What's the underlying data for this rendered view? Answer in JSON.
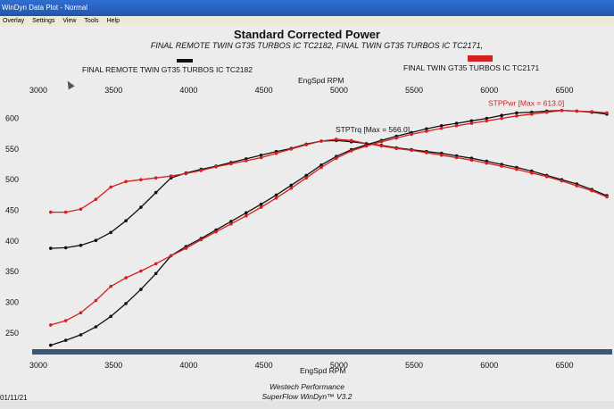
{
  "window": {
    "title": "WinDyn Data Plot - Normal"
  },
  "menu": [
    "Overlay",
    "Settings",
    "View",
    "Tools",
    "Help"
  ],
  "header": {
    "title": "Standard Corrected Power",
    "subtitle": "FINAL REMOTE TWIN GT35 TURBOS IC TC2182, FINAL TWIN GT35 TURBOS IC TC2171,",
    "legend_left": "FINAL REMOTE TWIN GT35 TURBOS IC TC2182",
    "legend_right": "FINAL TWIN GT35 TURBOS IC TC2171",
    "legend_left_color": "#111111",
    "legend_right_color": "#d42020"
  },
  "footer": {
    "date": "01/11/21",
    "brand": "Westech Performance",
    "software": "SuperFlow WinDyn™ V3.2"
  },
  "chart_data": {
    "type": "line",
    "xlabel": "EngSpd RPM",
    "xlim": [
      3000,
      6800
    ],
    "ylim": [
      225,
      630
    ],
    "x_ticks": [
      3000,
      3500,
      4000,
      4500,
      5000,
      5500,
      6000,
      6500
    ],
    "y_ticks": [
      250,
      300,
      350,
      400,
      450,
      500,
      550,
      600
    ],
    "annotations": {
      "torque": "STPTrq [Max = 566.0]",
      "power": "STPPwr [Max = 613.0]"
    },
    "series": [
      {
        "name": "STPTrq",
        "run": "FINAL REMOTE TWIN GT35 TURBOS IC TC2182",
        "color": "#111111",
        "x": [
          3100,
          3200,
          3300,
          3400,
          3500,
          3600,
          3700,
          3800,
          3900,
          4000,
          4100,
          4200,
          4300,
          4400,
          4500,
          4600,
          4700,
          4800,
          4900,
          5000,
          5100,
          5200,
          5300,
          5400,
          5500,
          5600,
          5700,
          5800,
          5900,
          6000,
          6100,
          6200,
          6300,
          6400,
          6500,
          6600,
          6700,
          6800
        ],
        "y": [
          388,
          389,
          393,
          401,
          414,
          433,
          455,
          479,
          503,
          511,
          517,
          522,
          528,
          534,
          540,
          546,
          551,
          558,
          563,
          564,
          562,
          559,
          556,
          552,
          549,
          546,
          543,
          539,
          535,
          530,
          525,
          520,
          514,
          507,
          500,
          493,
          484,
          474
        ]
      },
      {
        "name": "STPTrq",
        "run": "FINAL TWIN GT35 TURBOS IC TC2171",
        "color": "#d42020",
        "x": [
          3100,
          3200,
          3300,
          3400,
          3500,
          3600,
          3700,
          3800,
          3900,
          4000,
          4100,
          4200,
          4300,
          4400,
          4500,
          4600,
          4700,
          4800,
          4900,
          5000,
          5100,
          5200,
          5300,
          5400,
          5500,
          5600,
          5700,
          5800,
          5900,
          6000,
          6100,
          6200,
          6300,
          6400,
          6500,
          6600,
          6700,
          6800
        ],
        "y": [
          447,
          447,
          452,
          468,
          488,
          497,
          500,
          503,
          506,
          510,
          515,
          521,
          526,
          531,
          536,
          543,
          550,
          557,
          563,
          566,
          564,
          559,
          555,
          551,
          548,
          544,
          540,
          536,
          532,
          527,
          522,
          517,
          511,
          505,
          498,
          490,
          482,
          472
        ]
      },
      {
        "name": "STPPwr",
        "run": "FINAL REMOTE TWIN GT35 TURBOS IC TC2182",
        "color": "#111111",
        "x": [
          3100,
          3200,
          3300,
          3400,
          3500,
          3600,
          3700,
          3800,
          3900,
          4000,
          4100,
          4200,
          4300,
          4400,
          4500,
          4600,
          4700,
          4800,
          4900,
          5000,
          5100,
          5200,
          5300,
          5400,
          5500,
          5600,
          5700,
          5800,
          5900,
          6000,
          6100,
          6200,
          6300,
          6400,
          6500,
          6600,
          6700,
          6800
        ],
        "y": [
          230,
          238,
          247,
          260,
          277,
          298,
          321,
          347,
          376,
          391,
          404,
          418,
          432,
          446,
          460,
          475,
          491,
          507,
          524,
          538,
          549,
          557,
          564,
          571,
          577,
          583,
          588,
          592,
          596,
          600,
          605,
          609,
          610,
          612,
          613,
          612,
          610,
          607
        ]
      },
      {
        "name": "STPPwr",
        "run": "FINAL TWIN GT35 TURBOS IC TC2171",
        "color": "#d42020",
        "x": [
          3100,
          3200,
          3300,
          3400,
          3500,
          3600,
          3700,
          3800,
          3900,
          4000,
          4100,
          4200,
          4300,
          4400,
          4500,
          4600,
          4700,
          4800,
          4900,
          5000,
          5100,
          5200,
          5300,
          5400,
          5500,
          5600,
          5700,
          5800,
          5900,
          6000,
          6100,
          6200,
          6300,
          6400,
          6500,
          6600,
          6700,
          6800
        ],
        "y": [
          263,
          270,
          283,
          303,
          326,
          340,
          351,
          363,
          376,
          388,
          402,
          415,
          428,
          441,
          455,
          470,
          486,
          503,
          520,
          535,
          547,
          555,
          562,
          568,
          574,
          579,
          584,
          588,
          592,
          596,
          600,
          604,
          607,
          610,
          613,
          612,
          611,
          609
        ]
      }
    ]
  }
}
